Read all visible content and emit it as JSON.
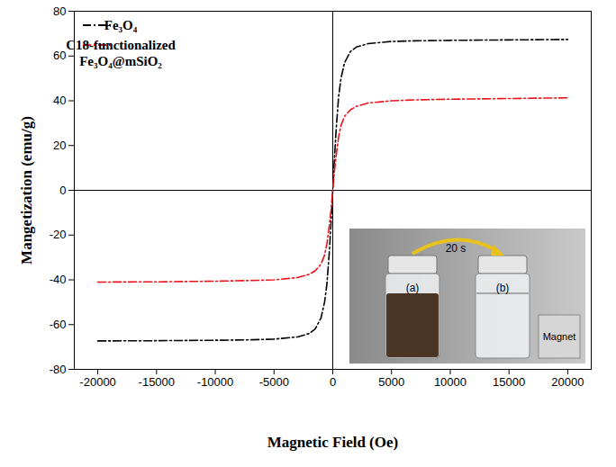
{
  "chart_data": {
    "type": "line",
    "x_label": "Magnetic Field (Oe)",
    "y_label": "Mangetization (emu/g)",
    "x": [
      -20000,
      -15000,
      -10000,
      -7000,
      -5000,
      -3000,
      -2000,
      -1500,
      -1000,
      -700,
      -500,
      -300,
      -150,
      0,
      150,
      300,
      500,
      700,
      1000,
      1500,
      2000,
      3000,
      5000,
      7000,
      10000,
      15000,
      20000
    ],
    "series": [
      {
        "name": "Fe₃O₄",
        "color": "#000000",
        "line_style": "dashdot",
        "values": [
          -67.3,
          -67.2,
          -67,
          -66.8,
          -66.5,
          -65.5,
          -64,
          -62,
          -57,
          -50,
          -42,
          -28,
          -15,
          0,
          15,
          28,
          42,
          50,
          57,
          62,
          64,
          65.5,
          66.5,
          66.8,
          67,
          67.2,
          67.4
        ]
      },
      {
        "name": "C18-functionalized Fe₃O₄@mSiO₂",
        "color": "#e8141b",
        "line_style": "dashdot",
        "values": [
          -41,
          -40.9,
          -40.6,
          -40.3,
          -40,
          -39,
          -37.5,
          -36,
          -33,
          -29,
          -24,
          -16,
          -9,
          0,
          9,
          16,
          24,
          29,
          33,
          36,
          37.5,
          39,
          40,
          40.4,
          40.7,
          41,
          41.3
        ]
      }
    ],
    "xlim": [
      -22000,
      22000
    ],
    "xticks": [
      -20000,
      -15000,
      -10000,
      -5000,
      0,
      5000,
      10000,
      15000,
      20000
    ],
    "ylim": [
      -80,
      80
    ],
    "yticks": [
      -80,
      -60,
      -40,
      -20,
      0,
      20,
      40,
      60,
      80
    ],
    "legend": "top-left",
    "annotations": [
      "20 s",
      "(a)",
      "(b)",
      "Magnet"
    ]
  }
}
